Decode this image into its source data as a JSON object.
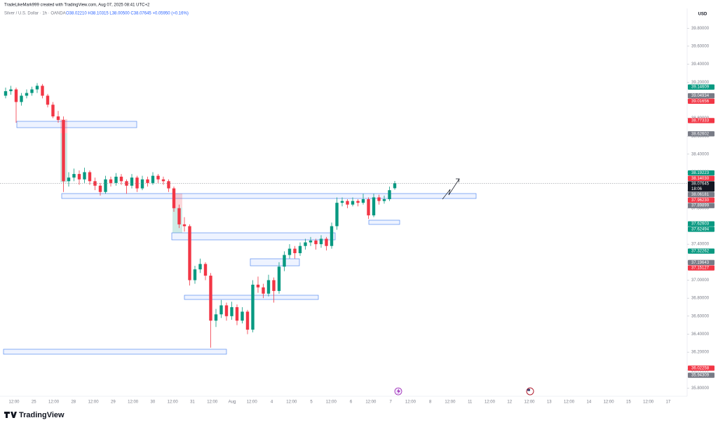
{
  "chart_data": {
    "type": "candlestick",
    "header": "TradeLikeMark999 created with TradingView.com, Aug 07, 2025 08:41 UTC+2",
    "symbol": "Silver / U.S. Dollar · 1h · OANDA",
    "ohlc_text": "O38.02210 H38.10315 L38.00500 C38.07645 +0.05950 (+0.16%)",
    "currency": "USD",
    "logo": "TradingView",
    "countdown": "18:06",
    "up_color": "#089981",
    "down_color": "#f23645",
    "ylim": [
      35.71,
      40.02
    ],
    "yticks": [
      {
        "value": 35.8,
        "label": "35.80000"
      },
      {
        "value": 36.0,
        "label": "36.00000"
      },
      {
        "value": 36.2,
        "label": "36.20000"
      },
      {
        "value": 36.4,
        "label": "36.40000"
      },
      {
        "value": 36.6,
        "label": "36.60000"
      },
      {
        "value": 36.8,
        "label": "36.80000"
      },
      {
        "value": 37.0,
        "label": "37.00000"
      },
      {
        "value": 37.2,
        "label": "37.20000"
      },
      {
        "value": 37.4,
        "label": "37.40000"
      },
      {
        "value": 37.6,
        "label": "37.60000"
      },
      {
        "value": 37.8,
        "label": "37.80000"
      },
      {
        "value": 38.0,
        "label": "38.00000"
      },
      {
        "value": 38.2,
        "label": "38.20000"
      },
      {
        "value": 38.4,
        "label": "38.40000"
      },
      {
        "value": 38.6,
        "label": "38.60000"
      },
      {
        "value": 38.8,
        "label": "38.80000"
      },
      {
        "value": 39.0,
        "label": "39.00000"
      },
      {
        "value": 39.2,
        "label": "39.20000"
      },
      {
        "value": 39.4,
        "label": "39.40000"
      },
      {
        "value": 39.6,
        "label": "39.60000"
      },
      {
        "value": 39.8,
        "label": "39.80000"
      }
    ],
    "x_labels": [
      "12:00",
      "25",
      "12:00",
      "28",
      "12:00",
      "29",
      "12:00",
      "30",
      "12:00",
      "31",
      "12:00",
      "Aug",
      "12:00",
      "4",
      "12:00",
      "5",
      "12:00",
      "6",
      "12:00",
      "7",
      "12:00",
      "8",
      "12:00",
      "11",
      "12:00",
      "12",
      "12:00",
      "13",
      "12:00",
      "14",
      "12:00",
      "15",
      "12:00",
      "17"
    ],
    "price_tags": [
      {
        "value": 39.14609,
        "label": "39.14609",
        "color": "#089981"
      },
      {
        "value": 39.04934,
        "label": "39.04934",
        "color": "#787b86"
      },
      {
        "value": 39.01656,
        "label": "39.01656",
        "color": "#f23645"
      },
      {
        "value": 38.77333,
        "label": "38.77333",
        "color": "#f23645"
      },
      {
        "value": 38.62602,
        "label": "38.62602",
        "color": "#787b86"
      },
      {
        "value": 38.19223,
        "label": "38.19223",
        "color": "#089981"
      },
      {
        "value": 38.1403,
        "label": "38.14030",
        "color": "#f23645"
      },
      {
        "value": 38.07645,
        "label": "38.07645",
        "color": "#131722"
      },
      {
        "value": 38.06181,
        "label": "38.06181",
        "color": "#787b86"
      },
      {
        "value": 37.9623,
        "label": "37.96230",
        "color": "#f23645"
      },
      {
        "value": 37.89899,
        "label": "37.89899",
        "color": "#787b86"
      },
      {
        "value": 37.62603,
        "label": "37.62603",
        "color": "#089981"
      },
      {
        "value": 37.62494,
        "label": "37.62494",
        "color": "#089981"
      },
      {
        "value": 37.32262,
        "label": "37.32262",
        "color": "#089981"
      },
      {
        "value": 37.19643,
        "label": "37.19643",
        "color": "#787b86"
      },
      {
        "value": 37.15127,
        "label": "37.15127",
        "color": "#f23645"
      },
      {
        "value": 36.02258,
        "label": "36.02258",
        "color": "#f23645"
      },
      {
        "value": 35.94309,
        "label": "35.94309",
        "color": "#787b86"
      }
    ],
    "ohlc": [
      [
        39.05,
        39.14,
        39.02,
        39.1
      ],
      [
        39.1,
        39.16,
        39.06,
        39.12
      ],
      [
        39.12,
        39.14,
        38.75,
        38.98
      ],
      [
        38.98,
        39.08,
        38.94,
        39.05
      ],
      [
        39.05,
        39.12,
        39.02,
        39.08
      ],
      [
        39.08,
        39.15,
        39.05,
        39.12
      ],
      [
        39.12,
        39.19,
        39.08,
        39.16
      ],
      [
        39.16,
        39.18,
        39.02,
        39.05
      ],
      [
        39.05,
        39.07,
        38.92,
        38.95
      ],
      [
        38.95,
        38.98,
        38.8,
        38.82
      ],
      [
        38.82,
        38.88,
        38.75,
        38.78
      ],
      [
        38.78,
        38.82,
        37.98,
        38.1
      ],
      [
        38.1,
        38.2,
        38.04,
        38.14
      ],
      [
        38.14,
        38.24,
        38.1,
        38.18
      ],
      [
        38.18,
        38.22,
        38.06,
        38.12
      ],
      [
        38.12,
        38.25,
        38.08,
        38.2
      ],
      [
        38.2,
        38.22,
        38.06,
        38.1
      ],
      [
        38.1,
        38.14,
        38.0,
        38.05
      ],
      [
        38.05,
        38.08,
        37.94,
        37.98
      ],
      [
        37.98,
        38.16,
        37.96,
        38.12
      ],
      [
        38.12,
        38.15,
        38.04,
        38.08
      ],
      [
        38.08,
        38.19,
        38.05,
        38.15
      ],
      [
        38.15,
        38.18,
        38.06,
        38.1
      ],
      [
        38.1,
        38.12,
        37.96,
        38.05
      ],
      [
        38.05,
        38.18,
        38.02,
        38.14
      ],
      [
        38.14,
        38.16,
        37.98,
        38.02
      ],
      [
        38.02,
        38.16,
        38.0,
        38.12
      ],
      [
        38.12,
        38.15,
        38.04,
        38.08
      ],
      [
        38.08,
        38.2,
        38.06,
        38.16
      ],
      [
        38.16,
        38.18,
        38.08,
        38.12
      ],
      [
        38.12,
        38.15,
        38.06,
        38.1
      ],
      [
        38.1,
        38.12,
        37.98,
        38.02
      ],
      [
        38.02,
        38.04,
        37.76,
        37.8
      ],
      [
        37.8,
        37.84,
        37.58,
        37.62
      ],
      [
        37.62,
        37.7,
        37.54,
        37.6
      ],
      [
        37.6,
        37.62,
        36.94,
        37.0
      ],
      [
        37.0,
        37.16,
        36.96,
        37.12
      ],
      [
        37.12,
        37.24,
        37.08,
        37.18
      ],
      [
        37.18,
        37.2,
        37.0,
        37.05
      ],
      [
        37.05,
        37.08,
        36.25,
        36.55
      ],
      [
        36.55,
        36.68,
        36.48,
        36.62
      ],
      [
        36.62,
        36.78,
        36.58,
        36.72
      ],
      [
        36.72,
        36.75,
        36.55,
        36.6
      ],
      [
        36.6,
        36.76,
        36.56,
        36.7
      ],
      [
        36.7,
        36.73,
        36.5,
        36.55
      ],
      [
        36.55,
        36.7,
        36.52,
        36.65
      ],
      [
        36.65,
        36.67,
        36.4,
        36.45
      ],
      [
        36.45,
        37.0,
        36.42,
        36.95
      ],
      [
        36.95,
        37.04,
        36.86,
        36.92
      ],
      [
        36.92,
        36.96,
        36.8,
        36.85
      ],
      [
        36.85,
        37.06,
        36.82,
        37.0
      ],
      [
        37.0,
        37.03,
        36.75,
        36.88
      ],
      [
        36.88,
        37.2,
        36.85,
        37.15
      ],
      [
        37.15,
        37.32,
        37.1,
        37.28
      ],
      [
        37.28,
        37.4,
        37.24,
        37.35
      ],
      [
        37.35,
        37.38,
        37.24,
        37.3
      ],
      [
        37.3,
        37.42,
        37.27,
        37.38
      ],
      [
        37.38,
        37.46,
        37.34,
        37.42
      ],
      [
        37.42,
        37.48,
        37.38,
        37.44
      ],
      [
        37.44,
        37.46,
        37.34,
        37.4
      ],
      [
        37.4,
        37.5,
        37.36,
        37.46
      ],
      [
        37.46,
        37.48,
        37.33,
        37.38
      ],
      [
        37.38,
        37.64,
        37.35,
        37.6
      ],
      [
        37.6,
        37.92,
        37.56,
        37.86
      ],
      [
        37.86,
        37.92,
        37.82,
        37.88
      ],
      [
        37.88,
        37.9,
        37.8,
        37.84
      ],
      [
        37.84,
        37.92,
        37.82,
        37.88
      ],
      [
        37.88,
        37.9,
        37.82,
        37.86
      ],
      [
        37.86,
        37.96,
        37.84,
        37.9
      ],
      [
        37.9,
        37.92,
        37.68,
        37.72
      ],
      [
        37.72,
        37.96,
        37.7,
        37.92
      ],
      [
        37.92,
        37.95,
        37.84,
        37.88
      ],
      [
        37.88,
        37.94,
        37.85,
        37.9
      ],
      [
        37.9,
        38.04,
        37.88,
        38.0
      ],
      [
        38.0221,
        38.10315,
        38.005,
        38.07645
      ]
    ]
  }
}
